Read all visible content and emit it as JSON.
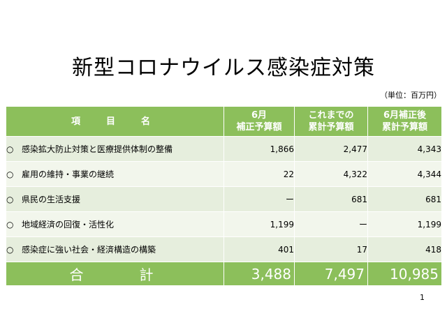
{
  "title": "新型コロナウイルス感染症対策",
  "unit": "（単位：百万円）",
  "table": {
    "headers": {
      "name": "項　目　名",
      "june": [
        "6月",
        "補正予算額"
      ],
      "cumulative": [
        "これまでの",
        "累計予算額"
      ],
      "after": [
        "6月補正後",
        "累計予算額"
      ]
    },
    "rows": [
      {
        "marker": "○",
        "name": "感染拡大防止対策と医療提供体制の整備",
        "june": "1,866",
        "cumulative": "2,477",
        "after": "4,343"
      },
      {
        "marker": "○",
        "name": "雇用の維持・事業の継続",
        "june": "22",
        "cumulative": "4,322",
        "after": "4,344"
      },
      {
        "marker": "○",
        "name": "県民の生活支援",
        "june": "ー",
        "cumulative": "681",
        "after": "681"
      },
      {
        "marker": "○",
        "name": "地域経済の回復・活性化",
        "june": "1,199",
        "cumulative": "ー",
        "after": "1,199"
      },
      {
        "marker": "○",
        "name": "感染症に強い社会・経済構造の構築",
        "june": "401",
        "cumulative": "17",
        "after": "418"
      }
    ],
    "total": {
      "label": "合　計",
      "june": "3,488",
      "cumulative": "7,497",
      "after": "10,985"
    }
  },
  "page_number": "1",
  "colors": {
    "header_green": "#8cbf5b",
    "row_odd": "#e6eedd",
    "row_even": "#f2f6ec"
  }
}
